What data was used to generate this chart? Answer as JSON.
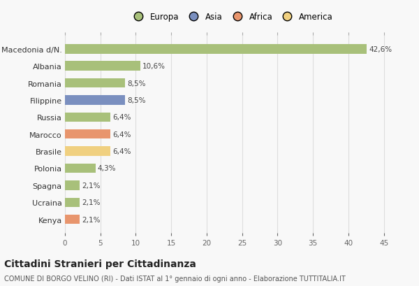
{
  "categories": [
    "Kenya",
    "Ucraina",
    "Spagna",
    "Polonia",
    "Brasile",
    "Marocco",
    "Russia",
    "Filippine",
    "Romania",
    "Albania",
    "Macedonia d/N."
  ],
  "values": [
    2.1,
    2.1,
    2.1,
    4.3,
    6.4,
    6.4,
    6.4,
    8.5,
    8.5,
    10.6,
    42.6
  ],
  "labels": [
    "2,1%",
    "2,1%",
    "2,1%",
    "4,3%",
    "6,4%",
    "6,4%",
    "6,4%",
    "8,5%",
    "8,5%",
    "10,6%",
    "42,6%"
  ],
  "colors": [
    "#e8956d",
    "#a8c07a",
    "#a8c07a",
    "#a8c07a",
    "#f0d080",
    "#e8956d",
    "#a8c07a",
    "#7a8fbf",
    "#a8c07a",
    "#a8c07a",
    "#a8c07a"
  ],
  "legend_labels": [
    "Europa",
    "Asia",
    "Africa",
    "America"
  ],
  "legend_colors": [
    "#a8c07a",
    "#7a8fbf",
    "#e8956d",
    "#f0d080"
  ],
  "title": "Cittadini Stranieri per Cittadinanza",
  "subtitle": "COMUNE DI BORGO VELINO (RI) - Dati ISTAT al 1° gennaio di ogni anno - Elaborazione TUTTITALIA.IT",
  "xlim": [
    0,
    47
  ],
  "xticks": [
    0,
    5,
    10,
    15,
    20,
    25,
    30,
    35,
    40,
    45
  ],
  "bg_color": "#f8f8f8",
  "bar_alpha": 1.0,
  "grid_color": "#dddddd"
}
